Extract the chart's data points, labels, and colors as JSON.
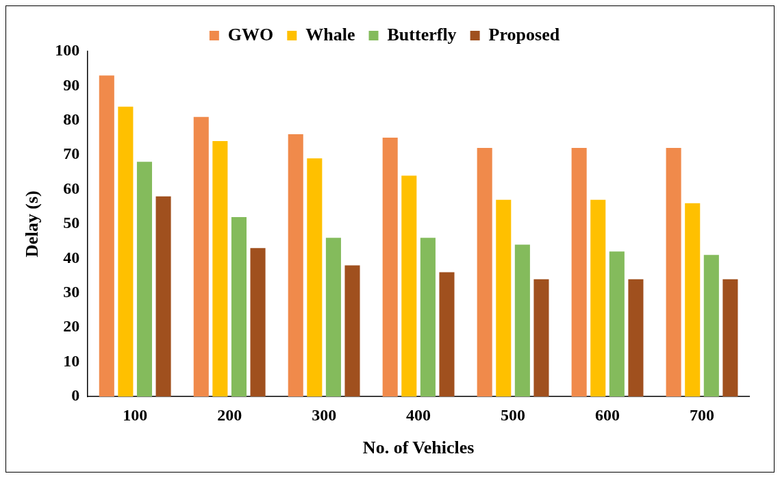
{
  "chart_data": {
    "type": "bar",
    "xlabel": "No. of Vehicles",
    "ylabel": "Delay (s)",
    "categories": [
      "100",
      "200",
      "300",
      "400",
      "500",
      "600",
      "700"
    ],
    "series": [
      {
        "name": "GWO",
        "color": "#f08a4b",
        "values": [
          93,
          81,
          76,
          75,
          72,
          72,
          72
        ]
      },
      {
        "name": "Whale",
        "color": "#ffc000",
        "values": [
          84,
          74,
          69,
          64,
          57,
          57,
          56
        ]
      },
      {
        "name": "Butterfly",
        "color": "#84bb5c",
        "values": [
          68,
          52,
          46,
          46,
          44,
          42,
          41
        ]
      },
      {
        "name": "Proposed",
        "color": "#a0501e",
        "values": [
          58,
          43,
          38,
          36,
          34,
          34,
          34
        ]
      }
    ],
    "ylim": [
      0,
      100
    ],
    "yticks": [
      0,
      10,
      20,
      30,
      40,
      50,
      60,
      70,
      80,
      90,
      100
    ],
    "grid": false,
    "legend": "top"
  }
}
